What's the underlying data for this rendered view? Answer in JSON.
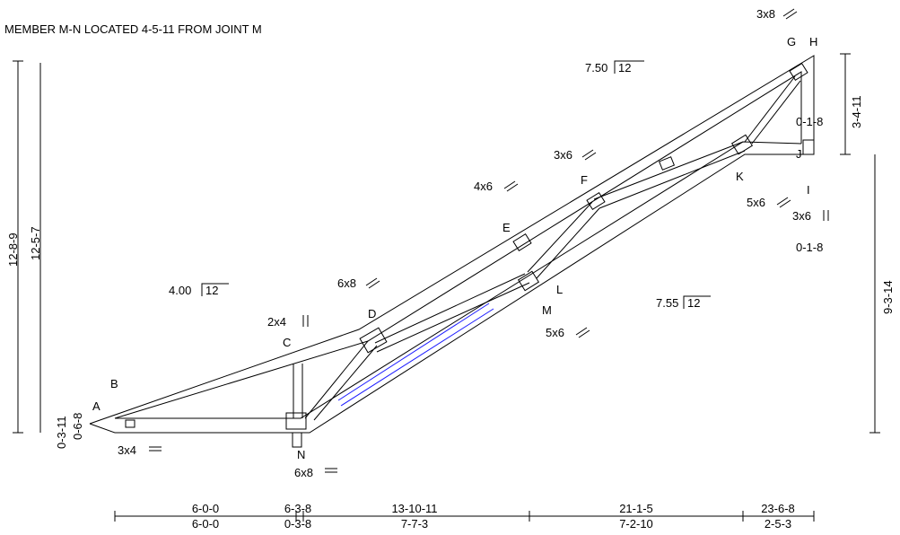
{
  "note": "MEMBER M-N LOCATED 4-5-11 FROM JOINT M",
  "joints": [
    "A",
    "B",
    "C",
    "D",
    "E",
    "F",
    "G",
    "H",
    "I",
    "J",
    "K",
    "L",
    "M",
    "N"
  ],
  "plates": [
    "3x8",
    "3x6",
    "4x6",
    "6x8",
    "2x4",
    "3x4",
    "6x8",
    "5x6",
    "3x6",
    "5x6"
  ],
  "slopes": [
    {
      "rise": "7.50",
      "run": "12"
    },
    {
      "rise": "4.00",
      "run": "12"
    },
    {
      "rise": "7.55",
      "run": "12"
    }
  ],
  "vertical_dimensions": [
    "12-8-9",
    "12-5-7",
    "0-3-11",
    "0-6-8",
    "3-4-11",
    "9-3-14"
  ],
  "offsets": [
    "0-1-8",
    "0-1-8"
  ],
  "bottom_cumulative": [
    "6-0-0",
    "6-3-8",
    "13-10-11",
    "21-1-5",
    "23-6-8"
  ],
  "bottom_spans": [
    "6-0-0",
    "0-3-8",
    "7-7-3",
    "7-2-10",
    "2-5-3"
  ]
}
